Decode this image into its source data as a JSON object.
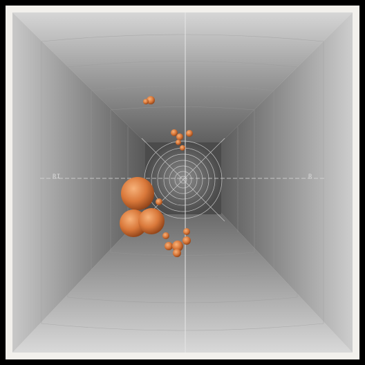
{
  "scene": {
    "description_label_left": "RI",
    "description_label_right": "R",
    "accent_color": "#d9783a",
    "wall_light": "#cfcfcf",
    "wall_dark": "#5a5a5a"
  }
}
